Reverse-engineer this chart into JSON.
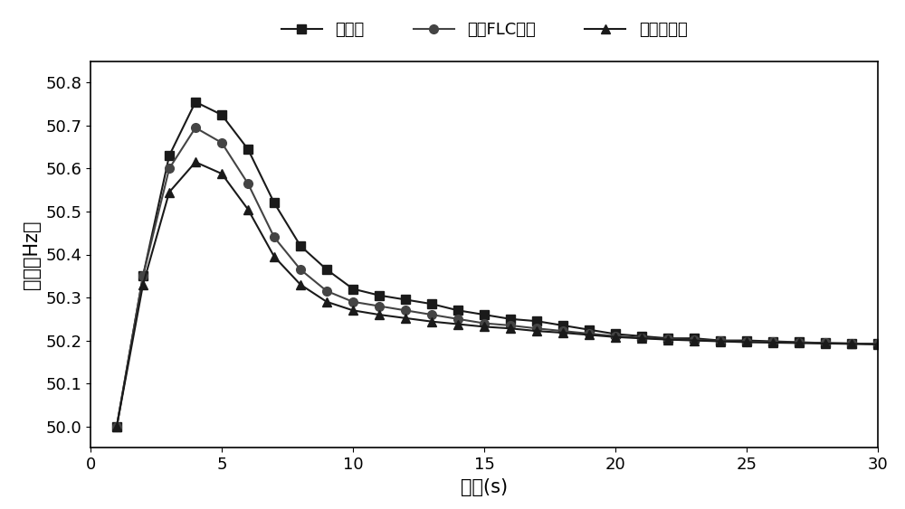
{
  "title": "",
  "xlabel": "时间(s)",
  "ylabel": "频率（Hz）",
  "xlim": [
    0,
    30
  ],
  "ylim": [
    49.95,
    50.85
  ],
  "yticks": [
    50.0,
    50.1,
    50.2,
    50.3,
    50.4,
    50.5,
    50.6,
    50.7,
    50.8
  ],
  "xticks": [
    0,
    5,
    10,
    15,
    20,
    25,
    30
  ],
  "legend_labels": [
    "无控制",
    "单回FLC控制",
    "本发明控制"
  ],
  "line1_color": "#1a1a1a",
  "line2_color": "#444444",
  "line3_color": "#1a1a1a",
  "marker1": "s",
  "marker2": "o",
  "marker3": "^",
  "markersize": 7,
  "linewidth": 1.5,
  "series1_x": [
    1,
    2,
    3,
    4,
    5,
    6,
    7,
    8,
    9,
    10,
    11,
    12,
    13,
    14,
    15,
    16,
    17,
    18,
    19,
    20,
    21,
    22,
    23,
    24,
    25,
    26,
    27,
    28,
    29,
    30
  ],
  "series1_y": [
    50.0,
    50.35,
    50.63,
    50.755,
    50.725,
    50.645,
    50.52,
    50.42,
    50.365,
    50.32,
    50.305,
    50.295,
    50.285,
    50.27,
    50.26,
    50.25,
    50.245,
    50.235,
    50.225,
    50.215,
    50.21,
    50.205,
    50.205,
    50.2,
    50.2,
    50.198,
    50.196,
    50.194,
    50.193,
    50.192
  ],
  "series2_x": [
    1,
    2,
    3,
    4,
    5,
    6,
    7,
    8,
    9,
    10,
    11,
    12,
    13,
    14,
    15,
    16,
    17,
    18,
    19,
    20,
    21,
    22,
    23,
    24,
    25,
    26,
    27,
    28,
    29,
    30
  ],
  "series2_y": [
    50.0,
    50.35,
    50.6,
    50.695,
    50.66,
    50.565,
    50.44,
    50.365,
    50.315,
    50.29,
    50.28,
    50.27,
    50.26,
    50.25,
    50.24,
    50.235,
    50.228,
    50.222,
    50.216,
    50.21,
    50.206,
    50.203,
    50.201,
    50.199,
    50.197,
    50.196,
    50.195,
    50.194,
    50.193,
    50.192
  ],
  "series3_x": [
    1,
    2,
    3,
    4,
    5,
    6,
    7,
    8,
    9,
    10,
    11,
    12,
    13,
    14,
    15,
    16,
    17,
    18,
    19,
    20,
    21,
    22,
    23,
    24,
    25,
    26,
    27,
    28,
    29,
    30
  ],
  "series3_y": [
    50.0,
    50.33,
    50.545,
    50.615,
    50.588,
    50.505,
    50.395,
    50.33,
    50.29,
    50.27,
    50.26,
    50.252,
    50.244,
    50.238,
    50.232,
    50.228,
    50.222,
    50.218,
    50.213,
    50.208,
    50.205,
    50.202,
    50.2,
    50.198,
    50.196,
    50.195,
    50.194,
    50.193,
    50.192,
    50.191
  ],
  "background_color": "#ffffff",
  "axis_color": "#000000",
  "font_size_label": 15,
  "font_size_tick": 13,
  "font_size_legend": 13
}
